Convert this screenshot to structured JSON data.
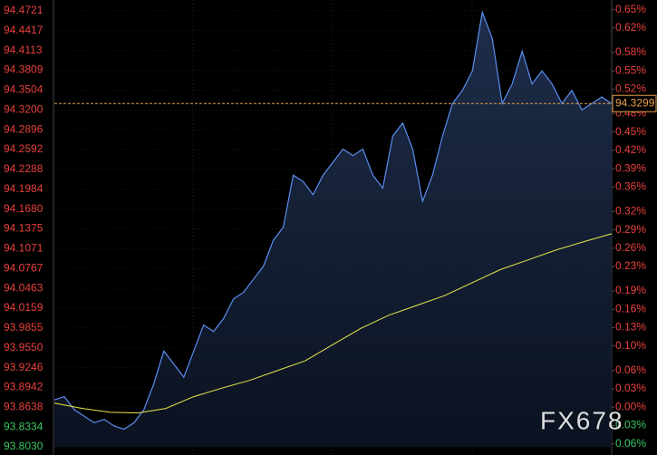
{
  "chart_data": {
    "type": "line",
    "watermark": "FX678",
    "last_price": 94.3299,
    "last_price_label": "94.3299",
    "ylim": [
      93.803,
      94.4721
    ],
    "yticks": [
      94.4721,
      94.4417,
      94.4113,
      94.3809,
      94.3504,
      {
        "value": 94.32,
        "label": "94.3200"
      },
      94.2896,
      94.2592,
      94.2288,
      94.1984,
      {
        "value": 94.168,
        "label": "94.1680"
      },
      94.1375,
      94.1071,
      94.0767,
      94.0463,
      94.0159,
      93.9855,
      {
        "value": 93.955,
        "label": "93.9550"
      },
      93.9246,
      93.8942,
      93.8638,
      93.8334,
      {
        "value": 93.803,
        "label": "93.8030"
      }
    ],
    "y2lim": [
      -0.0648,
      0.648
    ],
    "y2ticks": [
      {
        "value": 0.65,
        "label": "0.65%"
      },
      {
        "value": 0.62,
        "label": "0.62%"
      },
      {
        "value": 0.58,
        "label": "0.58%"
      },
      {
        "value": 0.55,
        "label": "0.55%"
      },
      {
        "value": 0.52,
        "label": "0.52%"
      },
      {
        "value": 0.48,
        "label": "0.48%"
      },
      {
        "value": 0.45,
        "label": "0.45%"
      },
      {
        "value": 0.42,
        "label": "0.42%"
      },
      {
        "value": 0.39,
        "label": "0.39%"
      },
      {
        "value": 0.36,
        "label": "0.36%"
      },
      {
        "value": 0.32,
        "label": "0.32%"
      },
      {
        "value": 0.29,
        "label": "0.29%"
      },
      {
        "value": 0.26,
        "label": "0.26%"
      },
      {
        "value": 0.23,
        "label": "0.23%"
      },
      {
        "value": 0.19,
        "label": "0.19%"
      },
      {
        "value": 0.16,
        "label": "0.16%"
      },
      {
        "value": 0.13,
        "label": "0.13%"
      },
      {
        "value": 0.1,
        "label": "0.10%"
      },
      {
        "value": 0.06,
        "label": "0.06%"
      },
      {
        "value": 0.03,
        "label": "0.03%"
      },
      {
        "value": 0,
        "label": "0.00%"
      },
      {
        "value": -0.03,
        "label": "0.03%"
      },
      {
        "value": -0.06,
        "label": "0.06%"
      }
    ],
    "up_color": "#e8403c",
    "down_color": "#3cc864",
    "grid": true,
    "series": [
      {
        "color": "#5b8ef0",
        "values": [
          93.875,
          93.88,
          93.86,
          93.85,
          93.84,
          93.845,
          93.835,
          93.83,
          93.84,
          93.86,
          93.9,
          93.95,
          93.93,
          93.91,
          93.95,
          93.99,
          93.98,
          94.0,
          94.03,
          94.04,
          94.06,
          94.08,
          94.12,
          94.14,
          94.22,
          94.21,
          94.19,
          94.22,
          94.24,
          94.26,
          94.25,
          94.26,
          94.22,
          94.2,
          94.28,
          94.3,
          94.26,
          94.18,
          94.22,
          94.28,
          94.33,
          94.35,
          94.38,
          94.47,
          94.43,
          94.33,
          94.36,
          94.41,
          94.36,
          94.38,
          94.36,
          94.33,
          94.35,
          94.32,
          94.33,
          94.34,
          94.3299
        ]
      },
      {
        "color": "#e8e84a",
        "values": [
          93.87,
          93.862,
          93.856,
          93.855,
          93.862,
          93.88,
          93.893,
          93.905,
          93.92,
          93.935,
          93.96,
          93.985,
          94.005,
          94.02,
          94.035,
          94.055,
          94.075,
          94.09,
          94.105,
          94.118,
          94.13
        ]
      }
    ]
  }
}
